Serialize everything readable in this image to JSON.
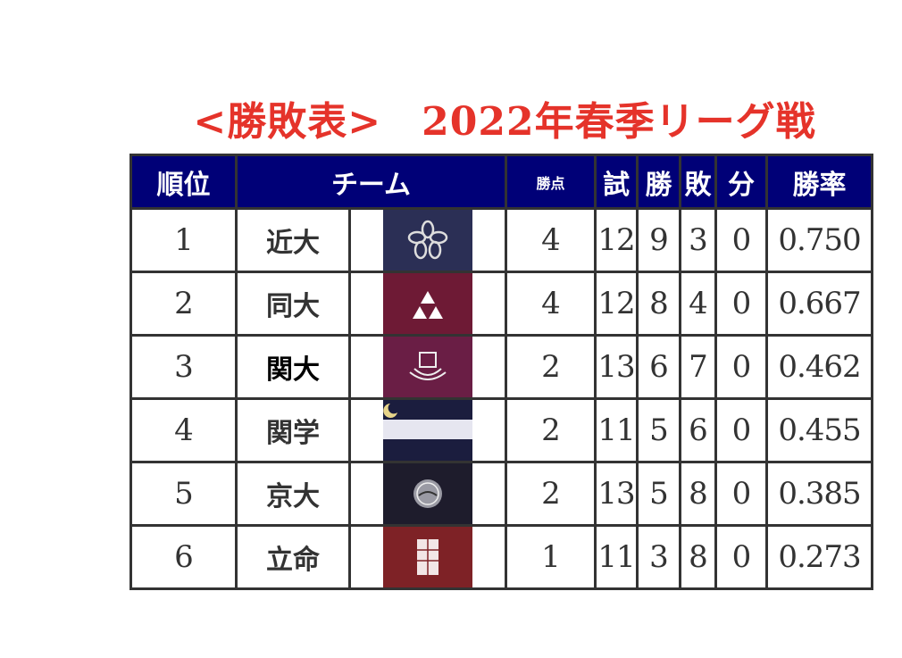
{
  "title": "<勝敗表>　2022年春季リーグ戦",
  "headers": {
    "rank": "順位",
    "team": "チーム",
    "points": "勝点",
    "games": "試",
    "wins": "勝",
    "losses": "敗",
    "draws": "分",
    "pct": "勝率"
  },
  "colors": {
    "title": "#e5332a",
    "header_bg": "#000077",
    "border": "#333333"
  },
  "rows": [
    {
      "rank": "1",
      "team": "近大",
      "flag": "kindai-flag",
      "points": "4",
      "games": "12",
      "wins": "9",
      "losses": "3",
      "draws": "0",
      "pct": "0.750"
    },
    {
      "rank": "2",
      "team": "同大",
      "flag": "doshisha-flag",
      "points": "4",
      "games": "12",
      "wins": "8",
      "losses": "4",
      "draws": "0",
      "pct": "0.667"
    },
    {
      "rank": "3",
      "team": "関大",
      "flag": "kansai-flag",
      "points": "2",
      "games": "13",
      "wins": "6",
      "losses": "7",
      "draws": "0",
      "pct": "0.462"
    },
    {
      "rank": "4",
      "team": "関学",
      "flag": "kwansei-flag",
      "points": "2",
      "games": "11",
      "wins": "5",
      "losses": "6",
      "draws": "0",
      "pct": "0.455"
    },
    {
      "rank": "5",
      "team": "京大",
      "flag": "kyoto-flag",
      "points": "2",
      "games": "13",
      "wins": "5",
      "losses": "8",
      "draws": "0",
      "pct": "0.385"
    },
    {
      "rank": "6",
      "team": "立命",
      "flag": "ritsumeikan-flag",
      "points": "1",
      "games": "11",
      "wins": "3",
      "losses": "8",
      "draws": "0",
      "pct": "0.273"
    }
  ]
}
